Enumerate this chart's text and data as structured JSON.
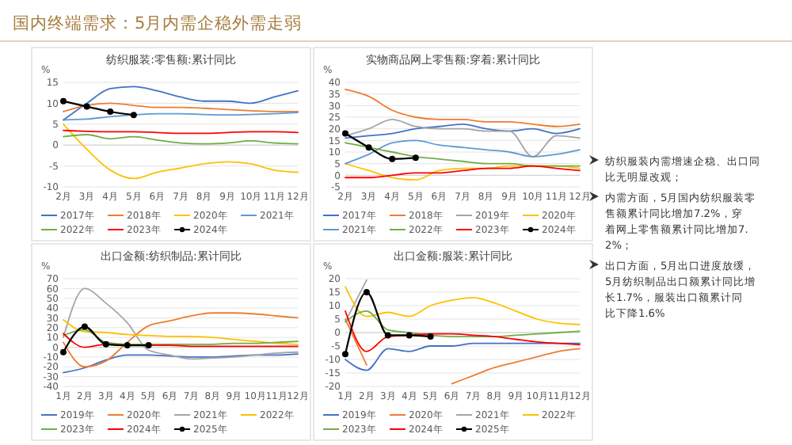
{
  "chart_data": [
    {
      "type": "other",
      "title": "国内终端需求：5月内需企稳外需走弱"
    },
    {
      "type": "line",
      "title": "纺织服装:零售额:累计同比",
      "ylabel": "%",
      "categories": [
        "2月",
        "3月",
        "4月",
        "5月",
        "6月",
        "7月",
        "8月",
        "9月",
        "10月",
        "11月",
        "12月"
      ],
      "ylim": [
        -10,
        15
      ],
      "yticks": [
        -10,
        -5,
        0,
        5,
        10,
        15
      ],
      "grid": "y",
      "legend": "bottom",
      "marker": "none",
      "series": [
        {
          "name": "2017年",
          "color": "#4472c4",
          "values": [
            6,
            10,
            13.5,
            14,
            13,
            11.5,
            10.5,
            10.5,
            10,
            11.5,
            13
          ]
        },
        {
          "name": "2018年",
          "color": "#ed7d31",
          "values": [
            8,
            9.5,
            10,
            9.5,
            9,
            9,
            8.8,
            8.5,
            8.2,
            8,
            8
          ]
        },
        {
          "name": "2020年",
          "color": "#ffc000",
          "values": [
            5,
            -1,
            -6,
            -8,
            -6.5,
            -5.5,
            -4.5,
            -4,
            -4.5,
            -6,
            -6.5
          ]
        },
        {
          "name": "2021年",
          "color": "#5b9bd5",
          "values": [
            6,
            6.2,
            6.8,
            7.2,
            7.5,
            7.5,
            7.3,
            7.2,
            7.3,
            7.5,
            7.8
          ]
        },
        {
          "name": "2022年",
          "color": "#70ad47",
          "values": [
            2,
            2.5,
            1.5,
            2,
            1.2,
            0.5,
            0.3,
            0.5,
            1,
            0.5,
            0.3
          ]
        },
        {
          "name": "2023年",
          "color": "#ff0000",
          "values": [
            3.5,
            3.3,
            3.2,
            3.2,
            3,
            2.8,
            2.8,
            3,
            3.2,
            3.2,
            3
          ]
        },
        {
          "name": "2024年",
          "color": "#000000",
          "marker": "circle",
          "values": [
            10.5,
            9.2,
            8,
            7.2,
            null,
            null,
            null,
            null,
            null,
            null,
            null
          ]
        }
      ]
    },
    {
      "type": "line",
      "title": "实物商品网上零售额:穿着:累计同比",
      "ylabel": "%",
      "categories": [
        "2月",
        "3月",
        "4月",
        "5月",
        "6月",
        "7月",
        "8月",
        "9月",
        "10月",
        "11月",
        "12月"
      ],
      "ylim": [
        -5,
        40
      ],
      "yticks": [
        -5,
        0,
        5,
        10,
        15,
        20,
        25,
        30,
        35,
        40
      ],
      "grid": "y",
      "legend": "bottom",
      "marker": "none",
      "series": [
        {
          "name": "2017年",
          "color": "#4472c4",
          "values": [
            16,
            17,
            18,
            20,
            21,
            22,
            20,
            19,
            20,
            18,
            20
          ]
        },
        {
          "name": "2018年",
          "color": "#ed7d31",
          "values": [
            37,
            34,
            28,
            25,
            24,
            24,
            23,
            23,
            22,
            21,
            22
          ]
        },
        {
          "name": "2019年",
          "color": "#a5a5a5",
          "values": [
            17,
            20,
            24,
            21,
            20,
            20,
            19,
            19,
            8,
            17,
            16
          ]
        },
        {
          "name": "2020年",
          "color": "#ffc000",
          "values": [
            5,
            2,
            -1,
            -2,
            2,
            3,
            3,
            4,
            4,
            4,
            3
          ]
        },
        {
          "name": "2021年",
          "color": "#5b9bd5",
          "values": [
            5,
            9,
            14,
            15,
            13,
            12,
            11,
            10,
            8,
            9,
            11
          ]
        },
        {
          "name": "2022年",
          "color": "#70ad47",
          "values": [
            14,
            12,
            10,
            8,
            7,
            6,
            5,
            5,
            4,
            4,
            4
          ]
        },
        {
          "name": "2023年",
          "color": "#ff0000",
          "values": [
            -1,
            -1,
            0,
            1,
            1,
            2,
            3,
            3,
            4,
            3,
            2
          ]
        },
        {
          "name": "2024年",
          "color": "#000000",
          "marker": "circle",
          "values": [
            18,
            12,
            7,
            7.5,
            null,
            null,
            null,
            null,
            null,
            null,
            null
          ]
        }
      ]
    },
    {
      "type": "line",
      "title": "出口金额:纺织制品:累计同比",
      "ylabel": "%",
      "categories": [
        "1月",
        "2月",
        "3月",
        "4月",
        "5月",
        "6月",
        "7月",
        "8月",
        "9月",
        "10月",
        "11月",
        "12月"
      ],
      "ylim": [
        -40,
        70
      ],
      "yticks": [
        -40,
        -30,
        -20,
        -10,
        0,
        10,
        20,
        30,
        40,
        50,
        60,
        70
      ],
      "grid": "y",
      "legend": "bottom",
      "marker": "none",
      "series": [
        {
          "name": "2019年",
          "color": "#4472c4",
          "values": [
            -26,
            -21,
            -13,
            -8,
            -8,
            -9,
            -10,
            -10,
            -9,
            -8,
            -8,
            -7
          ]
        },
        {
          "name": "2020年",
          "color": "#ed7d31",
          "values": [
            5,
            -20,
            -14,
            5,
            22,
            27,
            32,
            35,
            35,
            34,
            32,
            30
          ]
        },
        {
          "name": "2021年",
          "color": "#a5a5a5",
          "values": [
            10,
            60,
            45,
            25,
            -3,
            -8,
            -12,
            -11,
            -10,
            -8,
            -6,
            -5
          ]
        },
        {
          "name": "2022年",
          "color": "#ffc000",
          "values": [
            28,
            16,
            15,
            13,
            12,
            11,
            11,
            10,
            8,
            6,
            4,
            3
          ]
        },
        {
          "name": "2023年",
          "color": "#70ad47",
          "values": [
            12,
            18,
            5,
            3,
            3,
            3,
            3,
            3,
            4,
            4,
            5,
            6
          ]
        },
        {
          "name": "2024年",
          "color": "#ff0000",
          "values": [
            14,
            0,
            3,
            2,
            2,
            2,
            1,
            1,
            1,
            1,
            1,
            1
          ]
        },
        {
          "name": "2025年",
          "color": "#000000",
          "marker": "circle",
          "values": [
            -5,
            21,
            3,
            2,
            2,
            null,
            null,
            null,
            null,
            null,
            null,
            null
          ]
        }
      ]
    },
    {
      "type": "line",
      "title": "出口金额:服装:累计同比",
      "ylabel": "%",
      "categories": [
        "1月",
        "2月",
        "3月",
        "4月",
        "5月",
        "6月",
        "7月",
        "8月",
        "9月",
        "10月",
        "11月",
        "12月"
      ],
      "ylim": [
        -20,
        20
      ],
      "yticks": [
        -20,
        -15,
        -10,
        -5,
        0,
        5,
        10,
        15,
        20
      ],
      "grid": "y",
      "legend": "bottom",
      "marker": "none",
      "series": [
        {
          "name": "2019年",
          "color": "#4472c4",
          "values": [
            -10,
            -14,
            -6,
            -7,
            -5,
            -5,
            -4,
            -4,
            -4,
            -4,
            -4,
            -4
          ]
        },
        {
          "name": "2020年",
          "color": "#ed7d31",
          "values": [
            5,
            -12,
            null,
            null,
            null,
            -19,
            -16,
            -13,
            -11,
            -9,
            -7,
            -6
          ]
        },
        {
          "name": "2021年",
          "color": "#a5a5a5",
          "values": [
            4,
            19.5,
            null,
            null,
            null,
            null,
            null,
            null,
            null,
            null,
            null,
            null
          ]
        },
        {
          "name": "2022年",
          "color": "#ffc000",
          "values": [
            17,
            6,
            7.5,
            6,
            10,
            12,
            13,
            11,
            8,
            5,
            3.5,
            3
          ]
        },
        {
          "name": "2023年",
          "color": "#70ad47",
          "values": [
            4,
            8,
            1,
            0,
            -1,
            -1.5,
            -1.5,
            -1.5,
            -1,
            -0.5,
            0,
            0.5
          ]
        },
        {
          "name": "2024年",
          "color": "#ff0000",
          "values": [
            8,
            -7,
            -1.5,
            -1,
            -0.5,
            -0.5,
            -1,
            -1.5,
            -2.5,
            -3.5,
            -4,
            -4.5
          ]
        },
        {
          "name": "2025年",
          "color": "#000000",
          "marker": "circle",
          "values": [
            -8,
            15,
            -1,
            -1,
            -1.5,
            null,
            null,
            null,
            null,
            null,
            null,
            null
          ]
        }
      ]
    },
    {
      "type": "other",
      "annotations": [
        "纺织服装内需增速企稳、出口同比无明显改观；",
        "内需方面，5月国内纺织服装零售额累计同比增加7.2%，穿着网上零售额累计同比增加7.2%；",
        "出口方面，5月出口进度放缓，5月纺织制品出口额累计同比增长1.7%，服装出口额累计同比下降1.6%"
      ]
    }
  ]
}
